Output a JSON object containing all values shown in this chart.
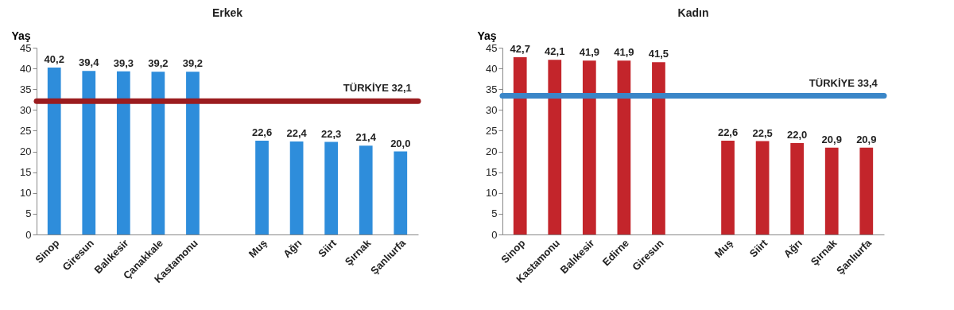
{
  "chart_data": [
    {
      "type": "bar",
      "title": "Erkek",
      "ylabel": "Yaş",
      "categories": [
        "Sinop",
        "Giresun",
        "Balıkesir",
        "Çanakkale",
        "Kastamonu",
        null,
        "Muş",
        "Ağrı",
        "Siirt",
        "Şırnak",
        "Şanlıurfa"
      ],
      "series": [
        {
          "color": "#2e8ddb",
          "values": [
            40.2,
            39.4,
            39.3,
            39.2,
            39.2,
            null,
            22.6,
            22.4,
            22.3,
            21.4,
            20.0
          ],
          "value_labels": [
            "40,2",
            "39,4",
            "39,3",
            "39,2",
            "39,2",
            null,
            "22,6",
            "22,4",
            "22,3",
            "21,4",
            "20,0"
          ]
        }
      ],
      "ylim": [
        0,
        45
      ],
      "yticks": [
        0,
        5,
        10,
        15,
        20,
        25,
        30,
        35,
        40,
        45
      ],
      "grid": false,
      "ref_lines": [
        {
          "axis": "y",
          "value": 32.1,
          "label": "TÜRKİYE 32,1",
          "color": "#9b1c1f"
        }
      ]
    },
    {
      "type": "bar",
      "title": "Kadın",
      "ylabel": "Yaş",
      "categories": [
        "Sinop",
        "Kastamonu",
        "Balıkesir",
        "Edirne",
        "Giresun",
        null,
        "Muş",
        "Siirt",
        "Ağrı",
        "Şırnak",
        "Şanlıurfa"
      ],
      "series": [
        {
          "color": "#c3252b",
          "values": [
            42.7,
            42.1,
            41.9,
            41.9,
            41.5,
            null,
            22.6,
            22.5,
            22.0,
            20.9,
            20.9
          ],
          "value_labels": [
            "42,7",
            "42,1",
            "41,9",
            "41,9",
            "41,5",
            null,
            "22,6",
            "22,5",
            "22,0",
            "20,9",
            "20,9"
          ]
        }
      ],
      "ylim": [
        0,
        45
      ],
      "yticks": [
        0,
        5,
        10,
        15,
        20,
        25,
        30,
        35,
        40,
        45
      ],
      "grid": false,
      "ref_lines": [
        {
          "axis": "y",
          "value": 33.4,
          "label": "TÜRKİYE 33,4",
          "color": "#3a86c8"
        }
      ]
    }
  ]
}
